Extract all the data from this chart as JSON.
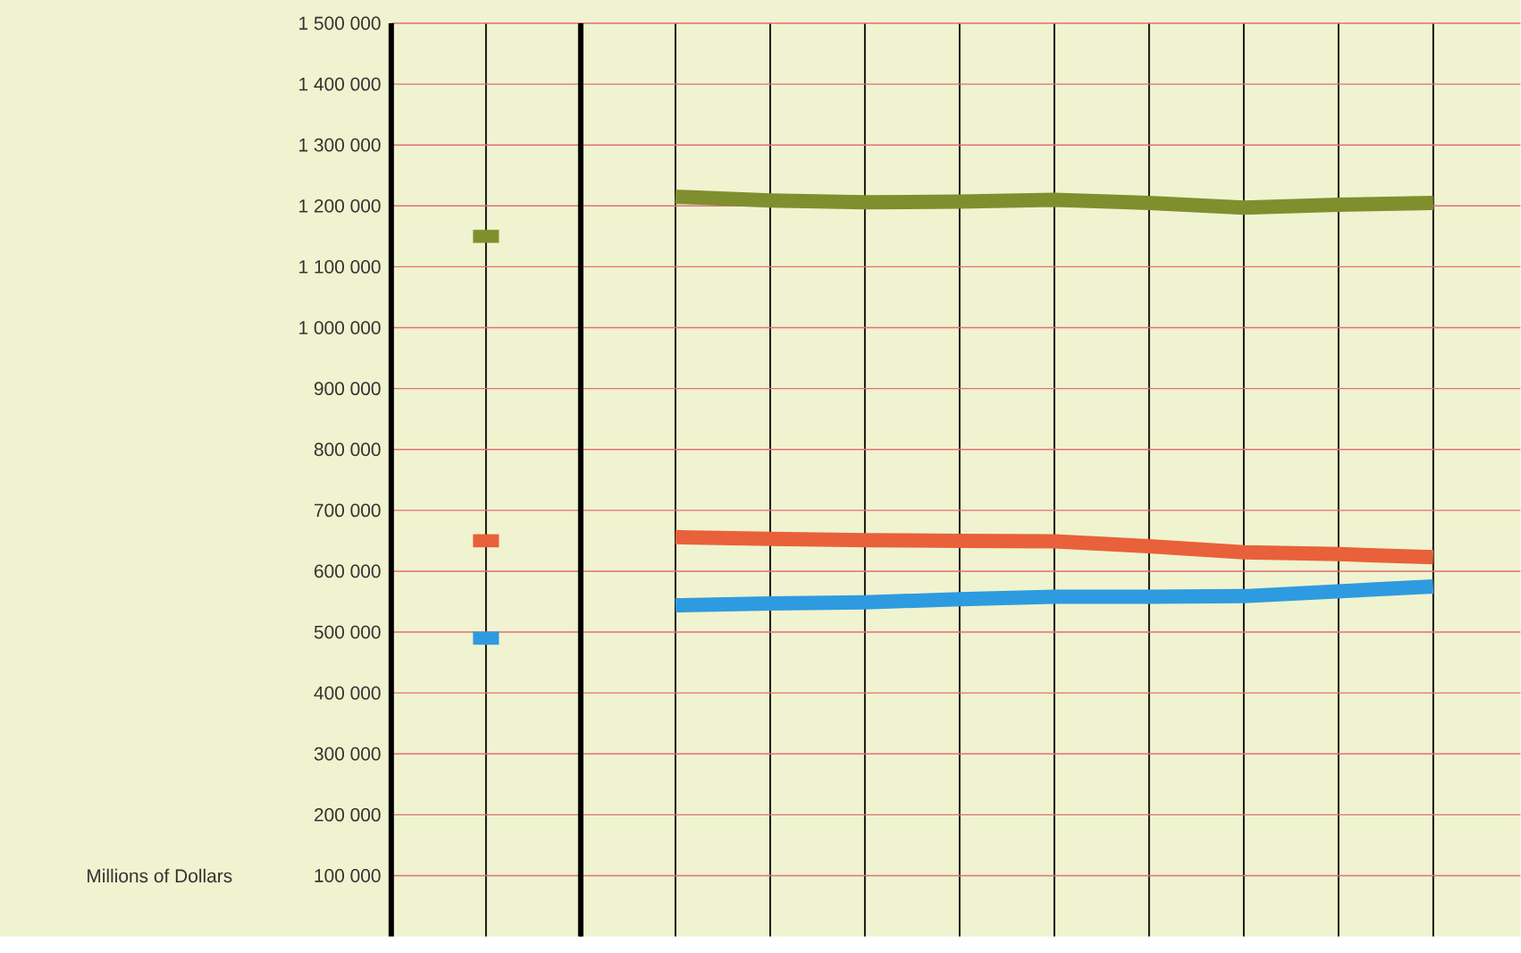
{
  "chart_data": {
    "type": "line",
    "annotations": [
      "Millions of Dollars"
    ],
    "categories": [
      null,
      null,
      null,
      null,
      null,
      null,
      null,
      null,
      null,
      null,
      null
    ],
    "ylim": [
      0,
      1500000
    ],
    "yticks": [
      {
        "value": 100000,
        "label": "100 000"
      },
      {
        "value": 200000,
        "label": "200 000"
      },
      {
        "value": 300000,
        "label": "300 000"
      },
      {
        "value": 400000,
        "label": "400 000"
      },
      {
        "value": 500000,
        "label": "500 000"
      },
      {
        "value": 600000,
        "label": "600 000"
      },
      {
        "value": 700000,
        "label": "700 000"
      },
      {
        "value": 800000,
        "label": "800 000"
      },
      {
        "value": 900000,
        "label": "900 000"
      },
      {
        "value": 1000000,
        "label": "1 000 000"
      },
      {
        "value": 1100000,
        "label": "1 100 000"
      },
      {
        "value": 1200000,
        "label": "1 200 000"
      },
      {
        "value": 1300000,
        "label": "1 300 000"
      },
      {
        "value": 1400000,
        "label": "1 400 000"
      },
      {
        "value": 1500000,
        "label": "1 500 000"
      }
    ],
    "grid": true,
    "tick_labels": "y",
    "series": [
      {
        "color": "#7f8f2e",
        "values": [
          null,
          null,
          1215000,
          1209000,
          1206000,
          1207000,
          1210000,
          1205000,
          1197000,
          1202000,
          1205000
        ]
      },
      {
        "color": "#e8613a",
        "values": [
          null,
          null,
          656000,
          653000,
          651000,
          650000,
          649000,
          641000,
          631000,
          628000,
          623000
        ]
      },
      {
        "color": "#2e9be0",
        "values": [
          null,
          null,
          544000,
          547000,
          549000,
          554000,
          558000,
          558000,
          559000,
          567000,
          575000
        ]
      },
      {
        "color": "#7f8f2e",
        "marker": "square",
        "values": [
          1150000,
          null,
          null,
          null,
          null,
          null,
          null,
          null,
          null,
          null,
          null
        ]
      },
      {
        "color": "#e8613a",
        "marker": "square",
        "values": [
          650000,
          null,
          null,
          null,
          null,
          null,
          null,
          null,
          null,
          null,
          null
        ]
      },
      {
        "color": "#2e9be0",
        "marker": "square",
        "values": [
          490000,
          null,
          null,
          null,
          null,
          null,
          null,
          null,
          null,
          null,
          null
        ]
      }
    ]
  }
}
